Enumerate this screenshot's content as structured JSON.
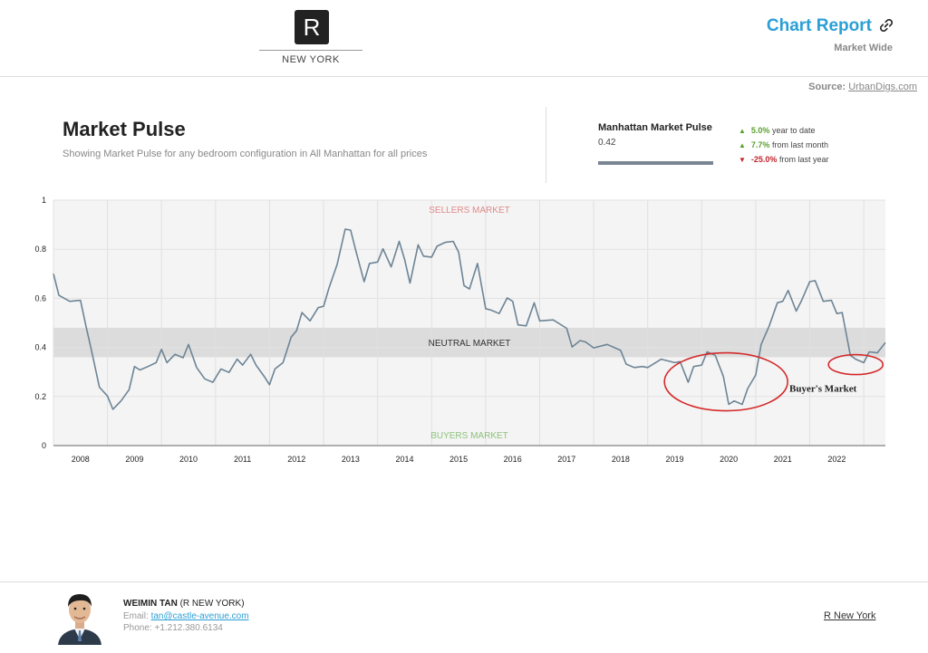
{
  "header": {
    "logo_letter": "R",
    "logo_city": "NEW YORK",
    "report_title": "Chart Report",
    "report_subtitle": "Market Wide",
    "source_label": "Source:",
    "source_link": "UrbanDigs.com"
  },
  "summary": {
    "title": "Market Pulse",
    "description": "Showing Market Pulse for any bedroom configuration in All Manhattan for all prices",
    "pulse_label": "Manhattan Market Pulse",
    "pulse_value": "0.42",
    "stats": [
      {
        "direction": "up",
        "value": "5.0%",
        "text": "year to date",
        "color": "#5aa02c"
      },
      {
        "direction": "up",
        "value": "7.7%",
        "text": "from last month",
        "color": "#5aa02c"
      },
      {
        "direction": "down",
        "value": "-25.0%",
        "text": "from last year",
        "color": "#c0242b"
      }
    ]
  },
  "chart_data": {
    "type": "line",
    "ylim": [
      0,
      1
    ],
    "yticks": [
      "0",
      "0.2",
      "0.4",
      "0.6",
      "0.8",
      "1"
    ],
    "xlim": [
      2007.5,
      2022.9
    ],
    "xticks": [
      "2008",
      "2009",
      "2010",
      "2011",
      "2012",
      "2013",
      "2014",
      "2015",
      "2016",
      "2017",
      "2018",
      "2019",
      "2020",
      "2021",
      "2022"
    ],
    "zones": {
      "sellers": "SELLERS MARKET",
      "neutral": "NEUTRAL MARKET",
      "buyers": "BUYERS MARKET",
      "neutral_band": [
        0.36,
        0.48
      ]
    },
    "annotation": "Buyer's Market",
    "series": [
      {
        "color": "#6d8495",
        "x": [
          2007.5,
          2007.6,
          2007.8,
          2008.0,
          2008.1,
          2008.2,
          2008.35,
          2008.5,
          2008.6,
          2008.75,
          2008.9,
          2009.0,
          2009.1,
          2009.25,
          2009.4,
          2009.5,
          2009.6,
          2009.75,
          2009.9,
          2010.0,
          2010.15,
          2010.3,
          2010.45,
          2010.6,
          2010.75,
          2010.9,
          2011.0,
          2011.15,
          2011.25,
          2011.4,
          2011.5,
          2011.6,
          2011.75,
          2011.9,
          2012.0,
          2012.1,
          2012.25,
          2012.4,
          2012.5,
          2012.6,
          2012.75,
          2012.9,
          2013.0,
          2013.1,
          2013.25,
          2013.35,
          2013.5,
          2013.6,
          2013.75,
          2013.9,
          2014.0,
          2014.1,
          2014.25,
          2014.35,
          2014.5,
          2014.6,
          2014.75,
          2014.9,
          2015.0,
          2015.1,
          2015.2,
          2015.35,
          2015.5,
          2015.6,
          2015.75,
          2015.9,
          2016.0,
          2016.1,
          2016.25,
          2016.4,
          2016.5,
          2016.75,
          2017.0,
          2017.1,
          2017.25,
          2017.35,
          2017.5,
          2017.75,
          2018.0,
          2018.1,
          2018.25,
          2018.4,
          2018.5,
          2018.75,
          2019.0,
          2019.1,
          2019.25,
          2019.35,
          2019.5,
          2019.6,
          2019.75,
          2019.9,
          2020.0,
          2020.1,
          2020.25,
          2020.35,
          2020.5,
          2020.6,
          2020.75,
          2020.9,
          2021.0,
          2021.1,
          2021.25,
          2021.35,
          2021.5,
          2021.6,
          2021.75,
          2021.9,
          2022.0,
          2022.1,
          2022.25,
          2022.35,
          2022.5,
          2022.6,
          2022.75,
          2022.9
        ],
        "y": [
          0.7,
          0.6,
          0.6,
          0.58,
          0.5,
          0.38,
          0.25,
          0.19,
          0.16,
          0.17,
          0.24,
          0.31,
          0.32,
          0.31,
          0.35,
          0.38,
          0.35,
          0.36,
          0.37,
          0.4,
          0.33,
          0.26,
          0.27,
          0.3,
          0.31,
          0.34,
          0.34,
          0.36,
          0.34,
          0.27,
          0.26,
          0.3,
          0.35,
          0.43,
          0.48,
          0.53,
          0.52,
          0.55,
          0.58,
          0.63,
          0.75,
          0.87,
          0.89,
          0.78,
          0.68,
          0.73,
          0.76,
          0.79,
          0.74,
          0.82,
          0.77,
          0.65,
          0.83,
          0.76,
          0.78,
          0.8,
          0.84,
          0.82,
          0.8,
          0.64,
          0.65,
          0.73,
          0.57,
          0.54,
          0.55,
          0.59,
          0.6,
          0.48,
          0.5,
          0.57,
          0.52,
          0.5,
          0.49,
          0.39,
          0.44,
          0.41,
          0.41,
          0.4,
          0.4,
          0.32,
          0.33,
          0.31,
          0.33,
          0.34,
          0.35,
          0.33,
          0.27,
          0.31,
          0.34,
          0.37,
          0.38,
          0.27,
          0.18,
          0.17,
          0.18,
          0.22,
          0.3,
          0.4,
          0.5,
          0.57,
          0.6,
          0.62,
          0.56,
          0.58,
          0.68,
          0.66,
          0.6,
          0.58,
          0.55,
          0.53,
          0.38,
          0.34,
          0.35,
          0.37,
          0.39,
          0.42
        ]
      }
    ]
  },
  "footer": {
    "agent_name": "WEIMIN TAN",
    "agent_brokerage": "(R NEW YORK)",
    "email_label": "Email:",
    "email": "tan@castle-avenue.com",
    "phone": "Phone: +1.212.380.6134",
    "brand_link": "R New York"
  }
}
